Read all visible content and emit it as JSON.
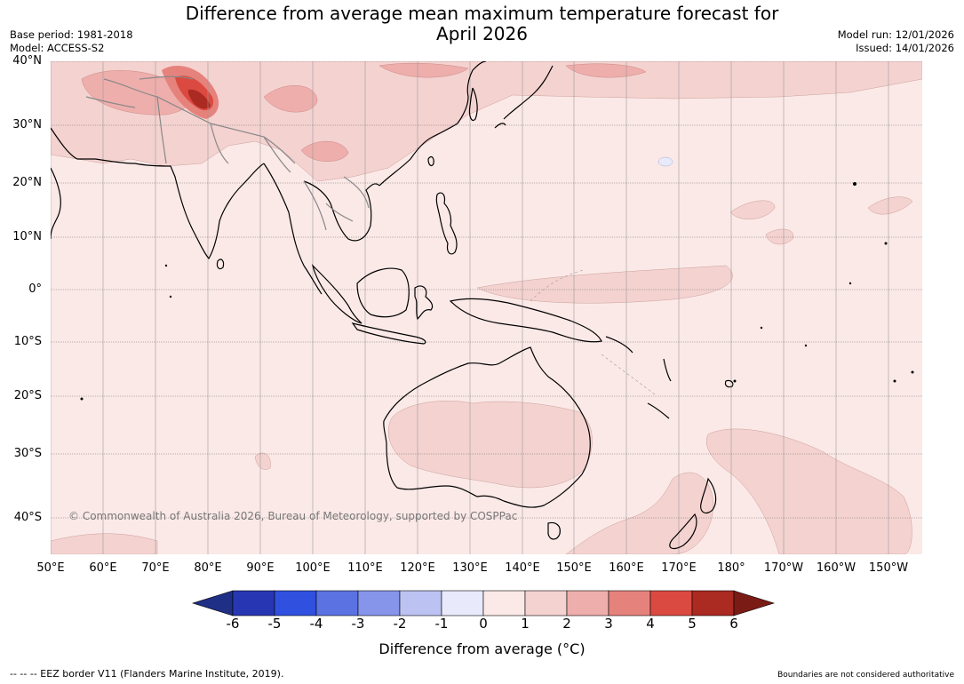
{
  "header": {
    "title_line1": "Difference from average mean maximum temperature forecast for",
    "title_line2": "April 2026",
    "base_period": "Base period: 1981-2018",
    "model": "Model: ACCESS-S2",
    "model_run": "Model run: 12/01/2026",
    "issued": "Issued: 14/01/2026"
  },
  "map": {
    "copyright": "© Commonwealth of Australia 2026, Bureau of Meteorology, supported by COSPPac",
    "lat_labels": [
      "40°N",
      "30°N",
      "20°N",
      "10°N",
      "0°",
      "10°S",
      "20°S",
      "30°S",
      "40°S"
    ],
    "lon_labels": [
      "50°E",
      "60°E",
      "70°E",
      "80°E",
      "90°E",
      "100°E",
      "110°E",
      "120°E",
      "130°E",
      "140°E",
      "150°E",
      "160°E",
      "170°E",
      "180°",
      "170°W",
      "160°W",
      "150°W"
    ],
    "colors": {
      "land_outline": "#000000",
      "border": "#888888",
      "grid": "#888888"
    }
  },
  "colorbar": {
    "ticks": [
      "-6",
      "-5",
      "-4",
      "-3",
      "-2",
      "-1",
      "0",
      "1",
      "2",
      "3",
      "4",
      "5",
      "6"
    ],
    "colors": [
      "#1f2f85",
      "#2737b3",
      "#3050e0",
      "#5b72e3",
      "#8694ea",
      "#bcc3f3",
      "#e8eafb",
      "#fbe9e7",
      "#f4d2d0",
      "#eeaeac",
      "#e6827c",
      "#db4a40",
      "#ab2a22",
      "#7a1b16"
    ],
    "label": "Difference from average (°C)"
  },
  "footer": {
    "eez": "--  --  -- EEZ border V11 (Flanders Marine Institute, 2019).",
    "disclaimer": "Boundaries are not considered authoritative"
  }
}
